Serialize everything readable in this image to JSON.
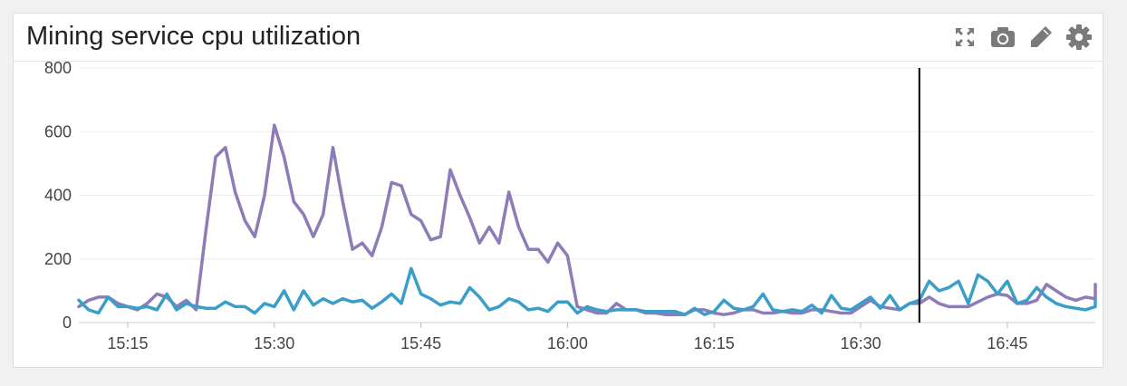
{
  "widget": {
    "title": "Mining service cpu utilization",
    "toolbar": [
      {
        "icon": "expand-icon",
        "name": "expand-button"
      },
      {
        "icon": "camera-icon",
        "name": "snapshot-button"
      },
      {
        "icon": "pencil-icon",
        "name": "edit-button"
      },
      {
        "icon": "gear-icon",
        "name": "settings-button"
      }
    ]
  },
  "chart_data": {
    "type": "line",
    "title": "Mining service cpu utilization",
    "xlabel": "",
    "ylabel": "",
    "x_range": [
      "15:10",
      "16:54"
    ],
    "ylim": [
      0,
      800
    ],
    "y_ticks": [
      0,
      200,
      400,
      600,
      800
    ],
    "x_ticks": [
      "15:15",
      "15:30",
      "15:45",
      "16:00",
      "16:15",
      "16:30",
      "16:45"
    ],
    "grid": true,
    "legend": "none",
    "cursor_time": "16:36",
    "series": [
      {
        "color": "#8e7cb8",
        "points": [
          [
            "15:10",
            50
          ],
          [
            "15:11",
            70
          ],
          [
            "15:12",
            80
          ],
          [
            "15:13",
            80
          ],
          [
            "15:14",
            60
          ],
          [
            "15:15",
            50
          ],
          [
            "15:16",
            40
          ],
          [
            "15:17",
            60
          ],
          [
            "15:18",
            90
          ],
          [
            "15:19",
            80
          ],
          [
            "15:20",
            50
          ],
          [
            "15:21",
            70
          ],
          [
            "15:22",
            40
          ],
          [
            "15:23",
            290
          ],
          [
            "15:24",
            520
          ],
          [
            "15:25",
            550
          ],
          [
            "15:26",
            410
          ],
          [
            "15:27",
            320
          ],
          [
            "15:28",
            270
          ],
          [
            "15:29",
            400
          ],
          [
            "15:30",
            620
          ],
          [
            "15:31",
            520
          ],
          [
            "15:32",
            380
          ],
          [
            "15:33",
            340
          ],
          [
            "15:34",
            270
          ],
          [
            "15:35",
            340
          ],
          [
            "15:36",
            550
          ],
          [
            "15:37",
            380
          ],
          [
            "15:38",
            230
          ],
          [
            "15:39",
            250
          ],
          [
            "15:40",
            210
          ],
          [
            "15:41",
            300
          ],
          [
            "15:42",
            440
          ],
          [
            "15:43",
            430
          ],
          [
            "15:44",
            340
          ],
          [
            "15:45",
            320
          ],
          [
            "15:46",
            260
          ],
          [
            "15:47",
            270
          ],
          [
            "15:48",
            480
          ],
          [
            "15:49",
            400
          ],
          [
            "15:50",
            330
          ],
          [
            "15:51",
            250
          ],
          [
            "15:52",
            300
          ],
          [
            "15:53",
            250
          ],
          [
            "15:54",
            410
          ],
          [
            "15:55",
            300
          ],
          [
            "15:56",
            230
          ],
          [
            "15:57",
            230
          ],
          [
            "15:58",
            190
          ],
          [
            "15:59",
            250
          ],
          [
            "16:00",
            210
          ],
          [
            "16:01",
            50
          ],
          [
            "16:02",
            40
          ],
          [
            "16:03",
            30
          ],
          [
            "16:04",
            30
          ],
          [
            "16:05",
            60
          ],
          [
            "16:06",
            40
          ],
          [
            "16:07",
            40
          ],
          [
            "16:08",
            30
          ],
          [
            "16:09",
            30
          ],
          [
            "16:10",
            25
          ],
          [
            "16:11",
            25
          ],
          [
            "16:12",
            25
          ],
          [
            "16:13",
            40
          ],
          [
            "16:14",
            40
          ],
          [
            "16:15",
            30
          ],
          [
            "16:16",
            25
          ],
          [
            "16:17",
            30
          ],
          [
            "16:18",
            40
          ],
          [
            "16:19",
            40
          ],
          [
            "16:20",
            30
          ],
          [
            "16:21",
            30
          ],
          [
            "16:22",
            35
          ],
          [
            "16:23",
            30
          ],
          [
            "16:24",
            30
          ],
          [
            "16:25",
            40
          ],
          [
            "16:26",
            40
          ],
          [
            "16:27",
            35
          ],
          [
            "16:28",
            30
          ],
          [
            "16:29",
            30
          ],
          [
            "16:30",
            50
          ],
          [
            "16:31",
            70
          ],
          [
            "16:32",
            50
          ],
          [
            "16:33",
            45
          ],
          [
            "16:34",
            40
          ],
          [
            "16:35",
            60
          ],
          [
            "16:36",
            60
          ],
          [
            "16:37",
            80
          ],
          [
            "16:38",
            60
          ],
          [
            "16:39",
            50
          ],
          [
            "16:40",
            50
          ],
          [
            "16:41",
            50
          ],
          [
            "16:42",
            65
          ],
          [
            "16:43",
            80
          ],
          [
            "16:44",
            90
          ],
          [
            "16:45",
            85
          ],
          [
            "16:46",
            60
          ],
          [
            "16:47",
            60
          ],
          [
            "16:48",
            70
          ],
          [
            "16:49",
            120
          ],
          [
            "16:50",
            100
          ],
          [
            "16:51",
            80
          ],
          [
            "16:52",
            70
          ],
          [
            "16:53",
            80
          ],
          [
            "16:54",
            75
          ],
          [
            "16:55",
            120
          ],
          [
            "16:56",
            80
          ]
        ]
      },
      {
        "color": "#3a9fc8",
        "points": [
          [
            "15:10",
            70
          ],
          [
            "15:11",
            40
          ],
          [
            "15:12",
            30
          ],
          [
            "15:13",
            80
          ],
          [
            "15:14",
            50
          ],
          [
            "15:15",
            50
          ],
          [
            "15:16",
            45
          ],
          [
            "15:17",
            50
          ],
          [
            "15:18",
            40
          ],
          [
            "15:19",
            90
          ],
          [
            "15:20",
            40
          ],
          [
            "15:21",
            60
          ],
          [
            "15:22",
            50
          ],
          [
            "15:23",
            45
          ],
          [
            "15:24",
            45
          ],
          [
            "15:25",
            65
          ],
          [
            "15:26",
            50
          ],
          [
            "15:27",
            50
          ],
          [
            "15:28",
            30
          ],
          [
            "15:29",
            60
          ],
          [
            "15:30",
            50
          ],
          [
            "15:31",
            100
          ],
          [
            "15:32",
            40
          ],
          [
            "15:33",
            100
          ],
          [
            "15:34",
            55
          ],
          [
            "15:35",
            75
          ],
          [
            "15:36",
            60
          ],
          [
            "15:37",
            75
          ],
          [
            "15:38",
            65
          ],
          [
            "15:39",
            70
          ],
          [
            "15:40",
            45
          ],
          [
            "15:41",
            65
          ],
          [
            "15:42",
            90
          ],
          [
            "15:43",
            60
          ],
          [
            "15:44",
            170
          ],
          [
            "15:45",
            90
          ],
          [
            "15:46",
            75
          ],
          [
            "15:47",
            55
          ],
          [
            "15:48",
            65
          ],
          [
            "15:49",
            60
          ],
          [
            "15:50",
            110
          ],
          [
            "15:51",
            80
          ],
          [
            "15:52",
            40
          ],
          [
            "15:53",
            50
          ],
          [
            "15:54",
            75
          ],
          [
            "15:55",
            65
          ],
          [
            "15:56",
            40
          ],
          [
            "15:57",
            45
          ],
          [
            "15:58",
            35
          ],
          [
            "15:59",
            65
          ],
          [
            "16:00",
            65
          ],
          [
            "16:01",
            30
          ],
          [
            "16:02",
            50
          ],
          [
            "16:03",
            40
          ],
          [
            "16:04",
            35
          ],
          [
            "16:05",
            40
          ],
          [
            "16:06",
            40
          ],
          [
            "16:07",
            40
          ],
          [
            "16:08",
            35
          ],
          [
            "16:09",
            35
          ],
          [
            "16:10",
            35
          ],
          [
            "16:11",
            35
          ],
          [
            "16:12",
            25
          ],
          [
            "16:13",
            45
          ],
          [
            "16:14",
            25
          ],
          [
            "16:15",
            35
          ],
          [
            "16:16",
            70
          ],
          [
            "16:17",
            45
          ],
          [
            "16:18",
            40
          ],
          [
            "16:19",
            50
          ],
          [
            "16:20",
            90
          ],
          [
            "16:21",
            40
          ],
          [
            "16:22",
            35
          ],
          [
            "16:23",
            40
          ],
          [
            "16:24",
            35
          ],
          [
            "16:25",
            55
          ],
          [
            "16:26",
            30
          ],
          [
            "16:27",
            85
          ],
          [
            "16:28",
            45
          ],
          [
            "16:29",
            40
          ],
          [
            "16:30",
            60
          ],
          [
            "16:31",
            80
          ],
          [
            "16:32",
            45
          ],
          [
            "16:33",
            85
          ],
          [
            "16:34",
            40
          ],
          [
            "16:35",
            60
          ],
          [
            "16:36",
            70
          ],
          [
            "16:37",
            130
          ],
          [
            "16:38",
            100
          ],
          [
            "16:39",
            110
          ],
          [
            "16:40",
            130
          ],
          [
            "16:41",
            60
          ],
          [
            "16:42",
            150
          ],
          [
            "16:43",
            130
          ],
          [
            "16:44",
            90
          ],
          [
            "16:45",
            130
          ],
          [
            "16:46",
            60
          ],
          [
            "16:47",
            70
          ],
          [
            "16:48",
            110
          ],
          [
            "16:49",
            80
          ],
          [
            "16:50",
            60
          ],
          [
            "16:51",
            50
          ],
          [
            "16:52",
            45
          ],
          [
            "16:53",
            40
          ],
          [
            "16:54",
            50
          ],
          [
            "16:55",
            70
          ],
          [
            "16:56",
            55
          ]
        ]
      }
    ]
  }
}
